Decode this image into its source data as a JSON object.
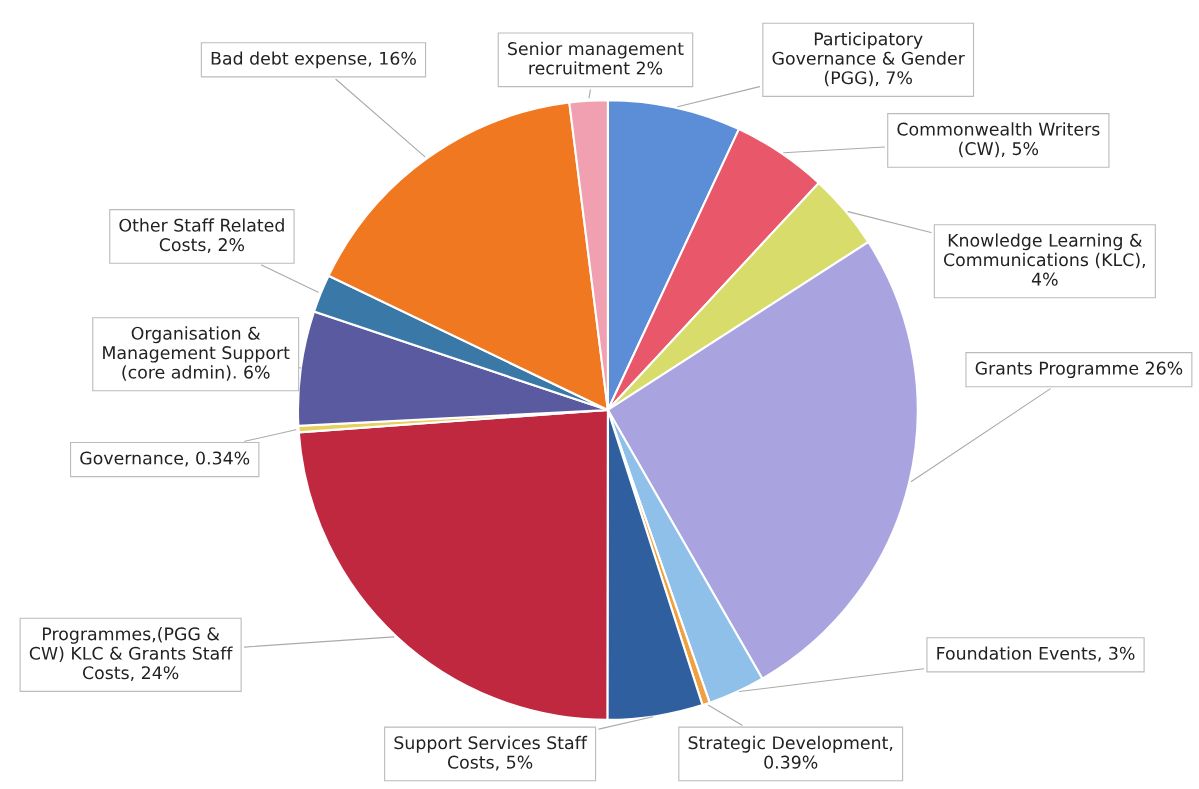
{
  "chart_data": {
    "type": "pie",
    "categories": [
      "Participatory\nGovernance & Gender\n(PGG), 7%",
      "Commonwealth Writers\n(CW), 5%",
      "Knowledge Learning &\nCommunications (KLC),\n4%",
      "Grants Programme 26%",
      "Foundation Events, 3%",
      "Strategic Development,\n0.39%",
      "Support Services Staff\nCosts, 5%",
      "Programmes,(PGG &\nCW) KLC & Grants Staff\nCosts, 24%",
      "Governance, 0.34%",
      "Organisation &\nManagement Support\n(core admin). 6%",
      "Other Staff Related\nCosts, 2%",
      "Bad debt expense, 16%",
      "Senior management\nrecruitment 2%"
    ],
    "values": [
      7,
      5,
      4,
      26,
      3,
      0.39,
      5,
      24,
      0.34,
      6,
      2,
      16,
      2
    ],
    "colors": [
      "#5b8ed6",
      "#e8576a",
      "#d7dc6a",
      "#a9a3e0",
      "#8ec0ea",
      "#f0a040",
      "#2f5f9e",
      "#c0283f",
      "#e6d060",
      "#5a5aa0",
      "#3a78a8",
      "#f07820",
      "#f0a0b0"
    ],
    "legend": false
  }
}
